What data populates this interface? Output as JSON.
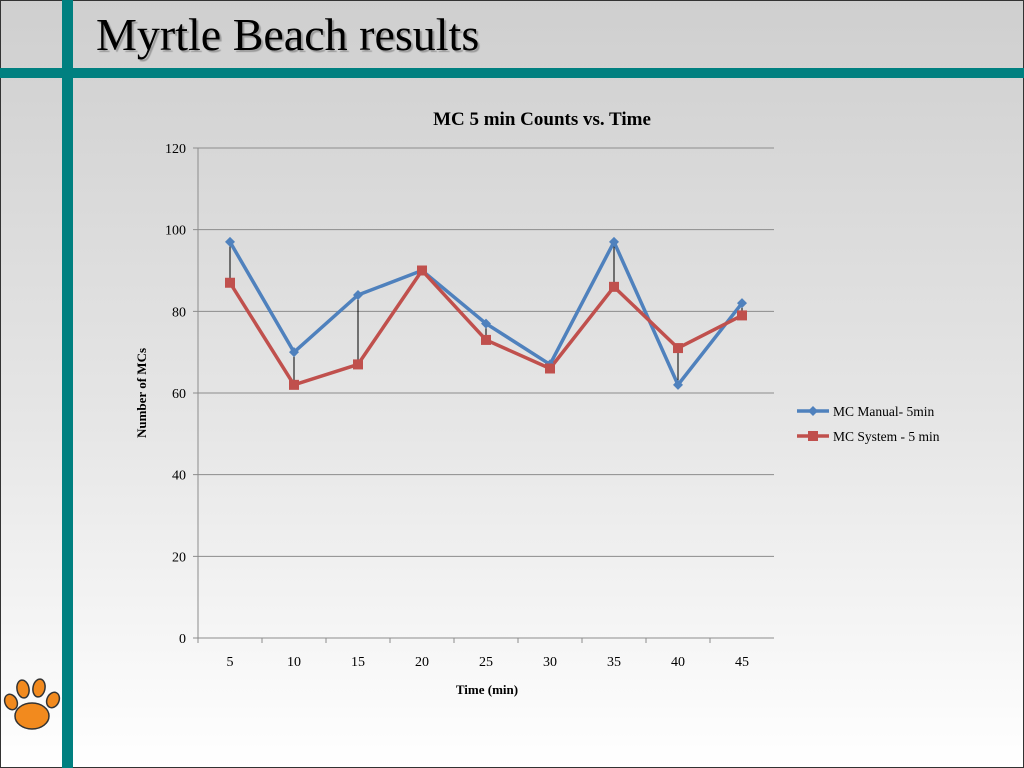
{
  "slide": {
    "title": "Myrtle Beach results"
  },
  "colors": {
    "accent": "#008080",
    "series1": "#4f81bd",
    "series2": "#c0504d"
  },
  "logo_icon": "tiger-paw-icon",
  "chart_data": {
    "type": "line",
    "title": "MC 5 min Counts vs. Time",
    "xlabel": "Time (min)",
    "ylabel": "Number of MCs",
    "categories": [
      "5",
      "10",
      "15",
      "20",
      "25",
      "30",
      "35",
      "40",
      "45"
    ],
    "ylim": [
      0,
      120
    ],
    "yticks": [
      "0",
      "20",
      "40",
      "60",
      "80",
      "100",
      "120"
    ],
    "grid": true,
    "legend_position": "right",
    "series": [
      {
        "name": "MC Manual- 5min",
        "values": [
          97,
          70,
          84,
          90,
          77,
          67,
          97,
          62,
          82
        ],
        "marker": "diamond"
      },
      {
        "name": "MC System - 5 min",
        "values": [
          87,
          62,
          67,
          90,
          73,
          66,
          86,
          71,
          79
        ],
        "marker": "square"
      }
    ],
    "annotations": "black difference lines between series at each x"
  }
}
